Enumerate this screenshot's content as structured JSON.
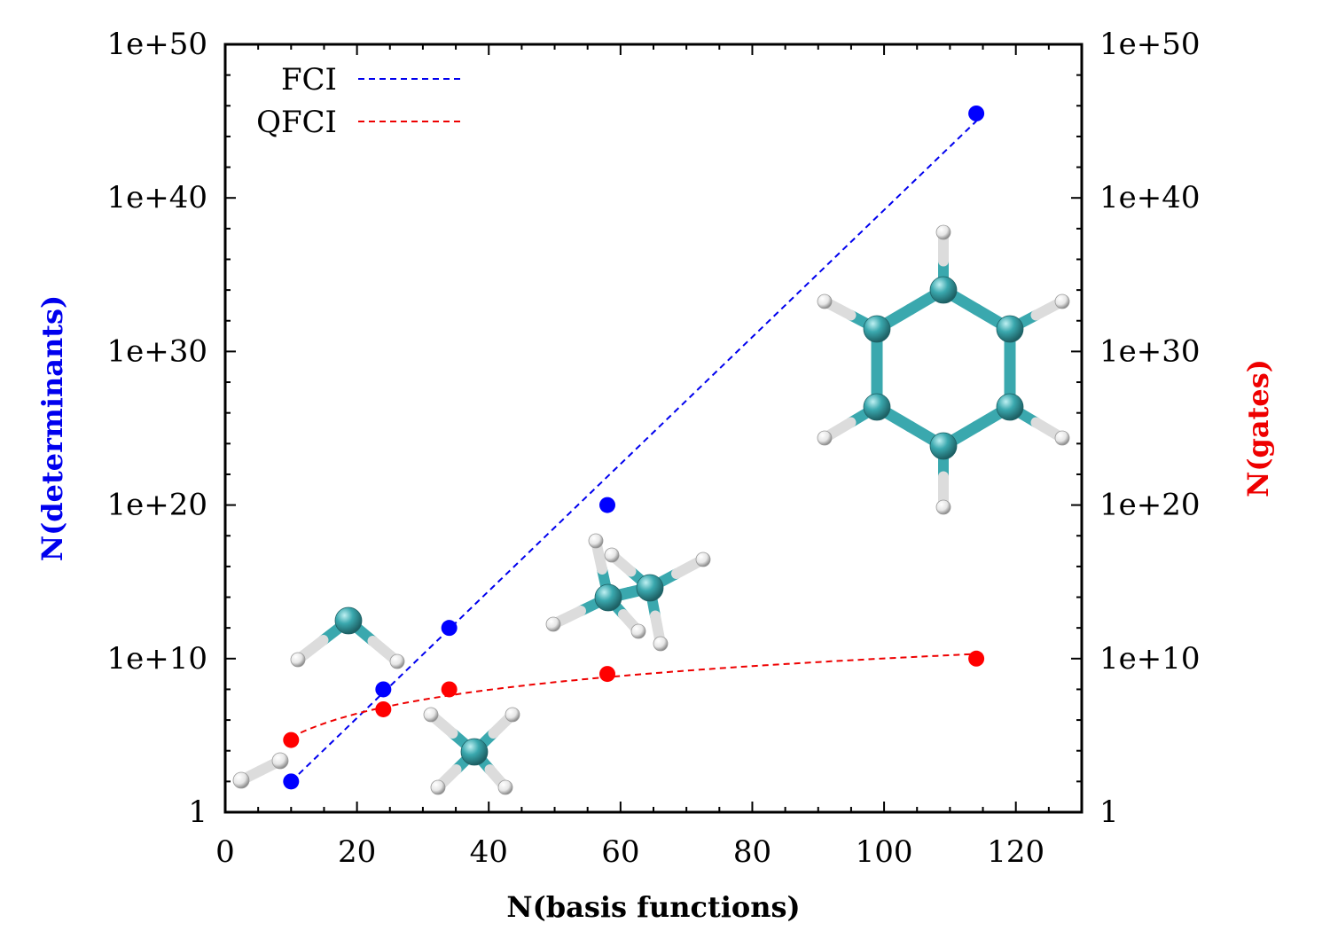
{
  "chart_data": {
    "type": "scatter",
    "xlabel": "N(basis functions)",
    "ylabel_left": "N(determinants)",
    "ylabel_right": "N(gates)",
    "xlim": [
      0,
      130
    ],
    "ylim_log10": [
      0,
      50
    ],
    "y_scale": "log",
    "x_ticks": [
      "0",
      "20",
      "40",
      "60",
      "80",
      "100",
      "120"
    ],
    "x_tick_values": [
      0,
      20,
      40,
      60,
      80,
      100,
      120
    ],
    "y_ticks": [
      "1",
      "1e+10",
      "1e+20",
      "1e+30",
      "1e+40",
      "1e+50"
    ],
    "y_tick_exponents": [
      0,
      10,
      20,
      30,
      40,
      50
    ],
    "legend_position": "top-left",
    "grid": false,
    "series": [
      {
        "name": "FCI",
        "color": "#0000ee",
        "point_color": "#0000ff",
        "x": [
          10,
          24,
          34,
          58,
          114
        ],
        "log10_y": [
          2,
          8,
          12,
          20,
          45.5
        ],
        "fit_x": [
          10,
          114
        ],
        "fit_log10_y": [
          2,
          45
        ]
      },
      {
        "name": "QFCI",
        "color": "#ee0000",
        "point_color": "#ff0000",
        "x": [
          10,
          24,
          34,
          58,
          114
        ],
        "log10_y": [
          4.7,
          6.7,
          8,
          9,
          10
        ],
        "fit_model": "log",
        "fit_x_range": [
          10,
          114
        ]
      }
    ],
    "molecule_icons": [
      "h2-molecule-icon",
      "water-molecule-icon",
      "methane-molecule-icon",
      "ethane-molecule-icon",
      "benzene-molecule-icon"
    ],
    "colors": {
      "left_axis_label": "#0000ee",
      "right_axis_label": "#ee0000",
      "carbon_atom": "#3aa8ae",
      "hydrogen_atom": "#eeeeee"
    }
  }
}
